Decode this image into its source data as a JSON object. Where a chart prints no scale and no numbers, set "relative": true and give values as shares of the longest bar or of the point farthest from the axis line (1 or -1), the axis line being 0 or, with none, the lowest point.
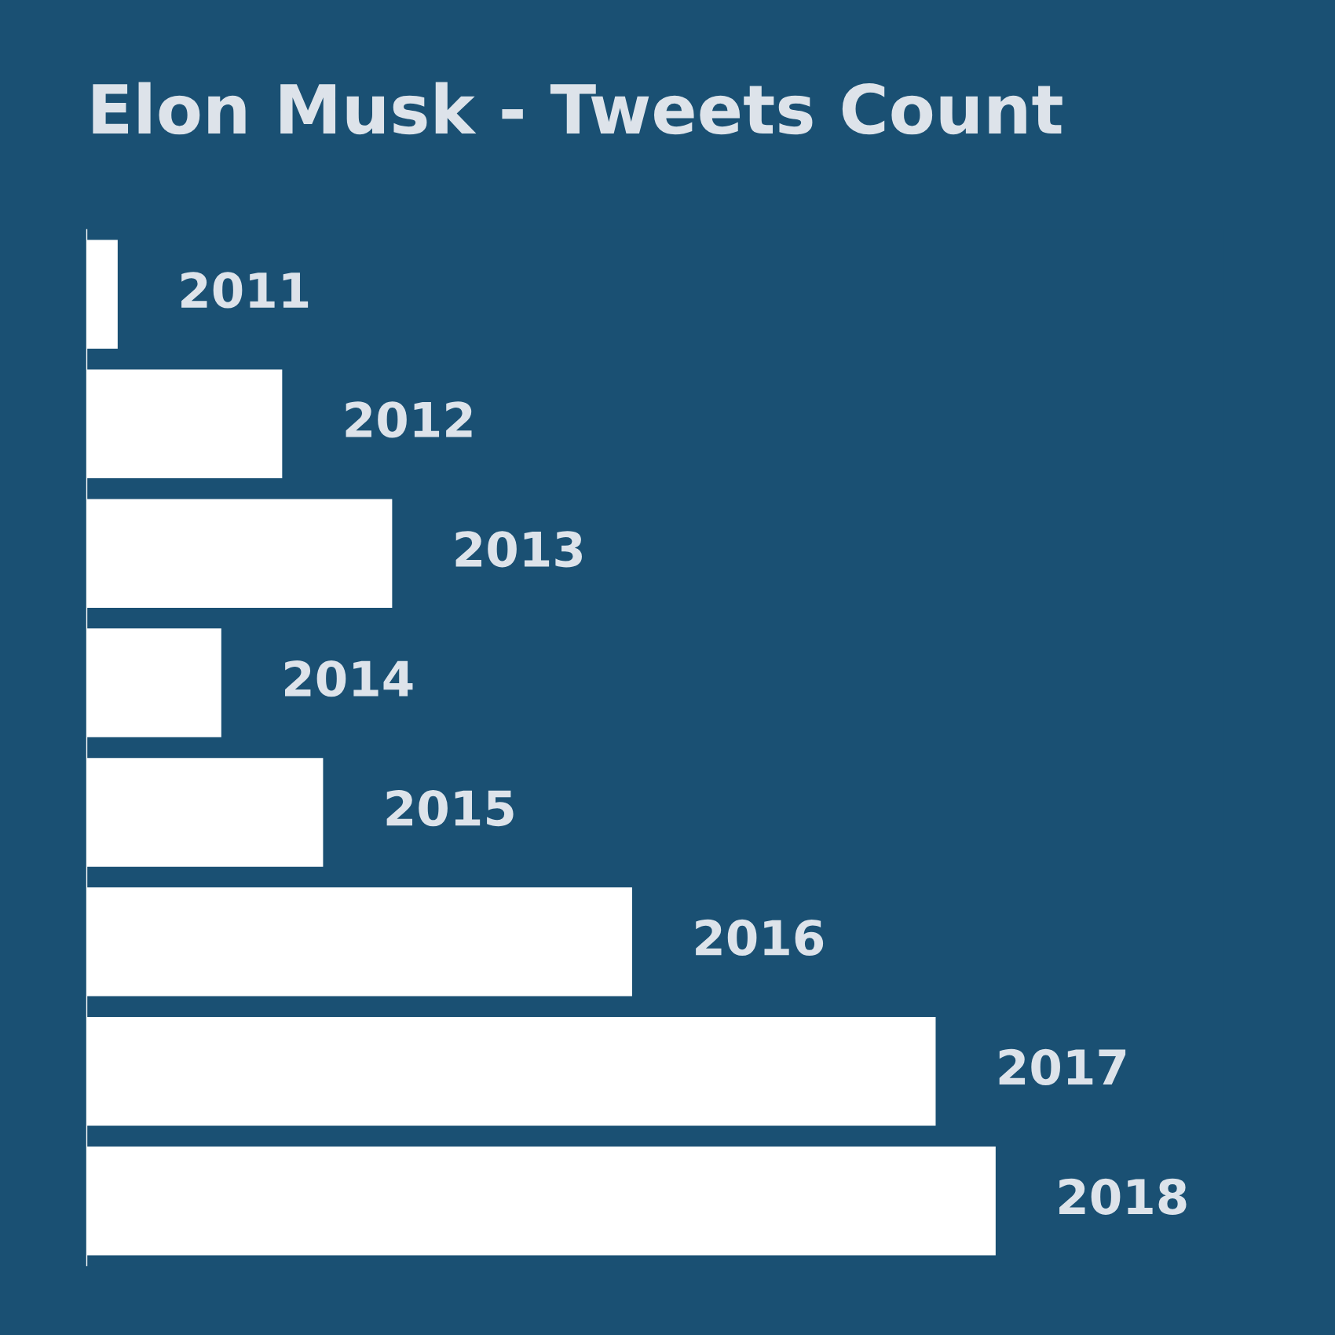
{
  "chart_data": {
    "type": "bar",
    "orientation": "horizontal",
    "relative": true,
    "title": "Elon Musk - Tweets Count",
    "categories": [
      "2011",
      "2012",
      "2013",
      "2014",
      "2015",
      "2016",
      "2017",
      "2018"
    ],
    "values": [
      0.034,
      0.215,
      0.336,
      0.148,
      0.26,
      0.6,
      0.934,
      1
    ],
    "color": "#ffffff"
  }
}
